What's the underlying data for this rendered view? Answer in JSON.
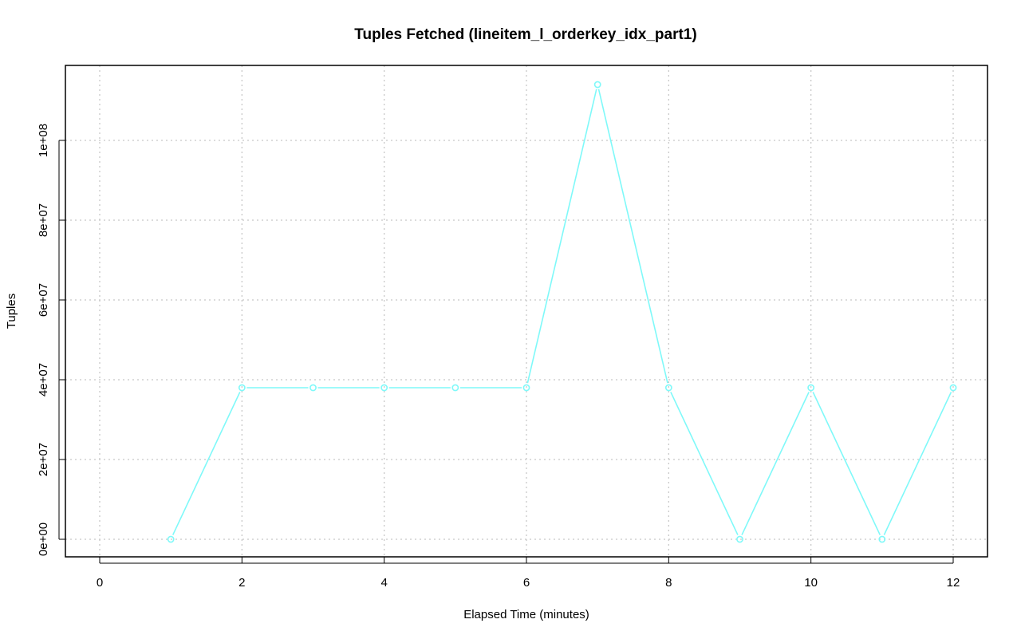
{
  "chart_data": {
    "type": "line",
    "title": "Tuples Fetched (lineitem_l_orderkey_idx_part1)",
    "xlabel": "Elapsed Time (minutes)",
    "ylabel": "Tuples",
    "xlim": [
      0,
      12
    ],
    "ylim": [
      0,
      114000000
    ],
    "x_ticks": [
      0,
      2,
      4,
      6,
      8,
      10,
      12
    ],
    "x_tick_labels": [
      "0",
      "2",
      "4",
      "6",
      "8",
      "10",
      "12"
    ],
    "y_ticks": [
      0,
      20000000,
      40000000,
      60000000,
      80000000,
      100000000
    ],
    "y_tick_labels": [
      "0e+00",
      "2e+07",
      "4e+07",
      "6e+07",
      "8e+07",
      "1e+08"
    ],
    "grid": true,
    "legend": "none",
    "series_color": "#7ff9f9",
    "series": [
      {
        "x": [
          1,
          2,
          3,
          4,
          5,
          6,
          7,
          8,
          9,
          10,
          11,
          12
        ],
        "values": [
          0,
          38000000,
          38000000,
          38000000,
          38000000,
          38000000,
          114000000,
          38000000,
          0,
          38000000,
          0,
          38000000
        ]
      }
    ]
  }
}
